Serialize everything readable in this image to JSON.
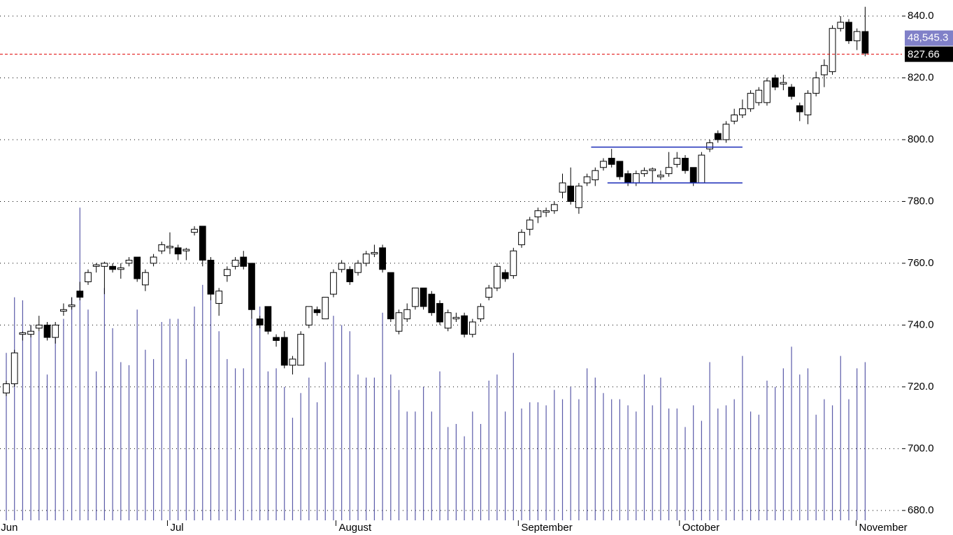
{
  "chart_data": {
    "type": "candlestick",
    "open": [
      718,
      721,
      737,
      737,
      739,
      740,
      736,
      744.5,
      746,
      751,
      754,
      759,
      759,
      759,
      758,
      760,
      762,
      753,
      760,
      764,
      765,
      765,
      764,
      770,
      772,
      761,
      747,
      756,
      759,
      762,
      760,
      742,
      746,
      736,
      736,
      727,
      727,
      740,
      745,
      742,
      750,
      758,
      758,
      757,
      760,
      763,
      765,
      757,
      738,
      742,
      746,
      752,
      750,
      747,
      739,
      742,
      743,
      737,
      742,
      749,
      752,
      757,
      756,
      766,
      771,
      775,
      776.5,
      777,
      783,
      785,
      778,
      786,
      787,
      791,
      794,
      793,
      789,
      786,
      789,
      790,
      788,
      789,
      792,
      794,
      791,
      786,
      797,
      802,
      800,
      806,
      808,
      810,
      812,
      812,
      820,
      818,
      817,
      811,
      808,
      815,
      821,
      822,
      836,
      838,
      832,
      835
    ],
    "high": [
      722,
      732,
      738,
      740,
      743,
      741,
      741,
      747,
      749,
      754,
      758,
      760,
      760.5,
      760,
      760,
      762,
      762,
      758,
      763,
      767,
      770,
      766,
      765,
      772,
      772,
      762,
      752,
      759,
      762,
      764,
      760,
      743,
      746,
      737,
      738,
      730,
      738,
      746,
      746,
      749,
      758,
      761,
      759,
      761,
      764,
      766,
      766,
      757,
      745,
      747,
      752,
      752,
      751,
      748,
      745,
      744,
      744,
      742,
      747,
      753,
      760,
      758,
      765,
      771,
      775,
      778,
      778,
      780,
      789,
      791,
      786,
      789,
      791,
      794,
      797,
      793,
      790,
      790,
      791,
      791,
      790,
      796,
      796,
      795,
      791,
      796,
      800,
      803,
      806,
      810,
      813,
      816,
      817,
      820,
      821,
      821,
      818,
      812,
      816,
      822,
      826,
      837,
      840,
      839,
      836,
      843
    ],
    "low": [
      717,
      720,
      735,
      736,
      738,
      735,
      734,
      743,
      745,
      748,
      753,
      757,
      750,
      757,
      755,
      759,
      754,
      751,
      759,
      763,
      763,
      761,
      761,
      769,
      759,
      748,
      743,
      754,
      758,
      758,
      742,
      739,
      737,
      733,
      726,
      724,
      727,
      739,
      743,
      742,
      749,
      757,
      753,
      756,
      759,
      762,
      757,
      741,
      737,
      741,
      745,
      745,
      743,
      740,
      738,
      741,
      736,
      736,
      741,
      748,
      751,
      754,
      755,
      765,
      769,
      773,
      775,
      776,
      781,
      779,
      776,
      785,
      785,
      790,
      791,
      787,
      785,
      785,
      788,
      786,
      787,
      788,
      791,
      789,
      785,
      786,
      796,
      799,
      799,
      805,
      807,
      809,
      811,
      811,
      816,
      816,
      813,
      806,
      805,
      814,
      817,
      821,
      835,
      831,
      829,
      827
    ],
    "close": [
      721,
      731,
      737.5,
      738,
      740,
      736,
      740,
      745,
      746.5,
      749,
      757,
      759.5,
      760,
      758,
      758.5,
      761,
      755,
      757,
      762,
      766,
      765.5,
      763,
      764.5,
      771,
      761,
      750,
      751,
      758,
      761,
      759,
      745,
      740,
      738,
      735,
      727,
      729,
      737,
      746,
      744,
      749,
      757,
      760,
      754,
      760,
      763,
      763.5,
      758,
      742,
      744,
      745,
      752,
      746,
      744,
      741,
      744,
      742.5,
      737,
      741,
      746,
      752,
      759,
      755,
      764,
      770,
      774,
      777,
      777,
      779,
      786,
      780,
      785,
      788,
      790,
      793,
      792,
      788,
      786,
      789,
      790,
      790.5,
      788.5,
      791,
      794,
      790,
      786,
      795,
      799,
      800,
      805,
      808,
      810,
      815,
      816,
      819,
      817,
      818.5,
      814,
      809,
      815,
      820,
      824,
      836,
      838,
      832,
      835,
      828
    ],
    "volume": [
      731,
      749,
      748,
      740,
      738,
      724,
      736,
      742,
      749,
      778,
      745,
      725,
      752,
      739,
      728,
      727,
      745,
      732,
      729,
      741,
      742,
      742,
      729,
      746,
      753,
      749,
      738,
      729,
      726,
      726,
      749,
      746,
      725,
      726,
      720,
      710,
      718,
      723,
      715,
      728,
      743,
      740,
      738,
      724,
      723,
      723,
      744,
      724,
      719,
      712,
      712,
      720,
      712,
      725,
      707,
      708,
      704,
      712,
      708,
      722,
      724,
      712,
      731,
      713,
      715,
      715,
      714,
      719,
      716,
      720,
      716,
      726,
      723,
      718,
      716,
      716,
      714,
      712,
      724,
      714,
      723,
      713,
      713,
      707,
      714,
      709,
      728,
      713,
      714,
      716,
      730,
      712,
      711,
      722,
      720,
      726,
      733,
      724,
      726,
      711,
      716,
      714,
      730,
      716,
      726,
      728
    ],
    "up_fill": "#ffffff",
    "down_fill": "#000000",
    "candle_stroke": "#000000",
    "volume_color": "#5a5aa8",
    "ylim": [
      676.8,
      845.2
    ],
    "yticks": [
      {
        "value": 680,
        "label": "680.0"
      },
      {
        "value": 700,
        "label": "700.0"
      },
      {
        "value": 720,
        "label": "720.0"
      },
      {
        "value": 740,
        "label": "740.0"
      },
      {
        "value": 760,
        "label": "760.0"
      },
      {
        "value": 780,
        "label": "780.0"
      },
      {
        "value": 800,
        "label": "800.0"
      },
      {
        "value": 820,
        "label": "820.0"
      },
      {
        "value": 840,
        "label": "840.0"
      }
    ],
    "xlim": [
      -0.77,
      109.5
    ],
    "xticks": [
      {
        "value": -1.0,
        "label": "Jun"
      },
      {
        "value": 19.7,
        "label": "Jul"
      },
      {
        "value": 40.3,
        "label": "August"
      },
      {
        "value": 62.6,
        "label": "September"
      },
      {
        "value": 82.3,
        "label": "October"
      },
      {
        "value": 103.9,
        "label": "November"
      }
    ],
    "grid": true,
    "last_price": 827.66,
    "last_price_color": "#e00000",
    "volume_label": "48,545.3",
    "volume_label_color": "#8080c8",
    "channel_lines": [
      {
        "y": 797.6,
        "x": [
          71.5,
          90
        ]
      },
      {
        "y": 786,
        "x": [
          73.5,
          90
        ]
      }
    ],
    "channel_color": "#1a2bb8"
  }
}
